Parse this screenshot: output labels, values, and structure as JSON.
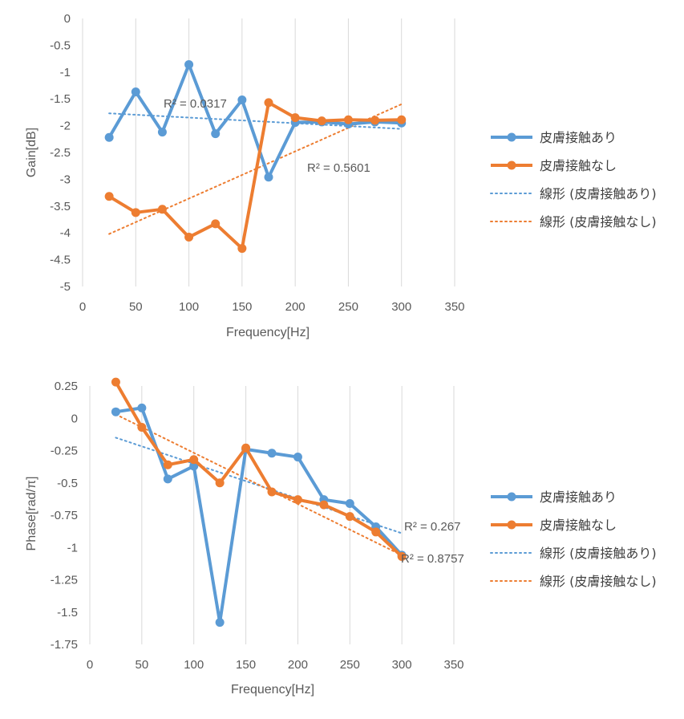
{
  "chart_data": [
    {
      "type": "line",
      "xlabel": "Frequency[Hz]",
      "ylabel": "Gain[dB]",
      "xlim": [
        0,
        350
      ],
      "ylim": [
        -5,
        0
      ],
      "x_ticks": [
        "0",
        "50",
        "100",
        "150",
        "200",
        "250",
        "300",
        "350"
      ],
      "y_ticks": [
        "0",
        "-0.5",
        "-1",
        "-1.5",
        "-2",
        "-2.5",
        "-3",
        "-3.5",
        "-4",
        "-4.5",
        "-5"
      ],
      "grid": "vertical",
      "legend_position": "right",
      "x": [
        25,
        50,
        75,
        100,
        125,
        150,
        175,
        200,
        225,
        250,
        275,
        300
      ],
      "series": [
        {
          "name": "皮膚接触あり",
          "color": "#5B9BD5",
          "values": [
            -2.22,
            -1.37,
            -2.12,
            -0.86,
            -2.15,
            -1.52,
            -2.96,
            -1.94,
            -1.93,
            -1.97,
            -1.93,
            -1.95
          ]
        },
        {
          "name": "皮膚接触なし",
          "color": "#ED7D31",
          "values": [
            -3.32,
            -3.62,
            -3.56,
            -4.08,
            -3.83,
            -4.29,
            -1.57,
            -1.85,
            -1.91,
            -1.89,
            -1.9,
            -1.89
          ]
        }
      ],
      "trendlines": [
        {
          "name": "線形 (皮膚接触あり)",
          "color": "#5B9BD5",
          "x": [
            25,
            300
          ],
          "values": [
            -1.77,
            -2.06
          ],
          "r2_label": "R² = 0.0317"
        },
        {
          "name": "線形 (皮膚接触なし)",
          "color": "#ED7D31",
          "x": [
            25,
            300
          ],
          "values": [
            -4.02,
            -1.6
          ],
          "r2_label": "R² = 0.5601"
        }
      ]
    },
    {
      "type": "line",
      "xlabel": "Frequency[Hz]",
      "ylabel": "Phase[rad/π]",
      "xlim": [
        0,
        350
      ],
      "ylim": [
        -1.75,
        0.25
      ],
      "x_ticks": [
        "0",
        "50",
        "100",
        "150",
        "200",
        "250",
        "300",
        "350"
      ],
      "y_ticks": [
        "0.25",
        "0",
        "-0.25",
        "-0.5",
        "-0.75",
        "-1",
        "-1.25",
        "-1.5",
        "-1.75"
      ],
      "grid": "vertical",
      "legend_position": "right",
      "x": [
        25,
        50,
        75,
        100,
        125,
        150,
        175,
        200,
        225,
        250,
        275,
        300
      ],
      "series": [
        {
          "name": "皮膚接触あり",
          "color": "#5B9BD5",
          "values": [
            0.05,
            0.08,
            -0.47,
            -0.37,
            -1.58,
            -0.24,
            -0.27,
            -0.3,
            -0.63,
            -0.66,
            -0.84,
            -1.06
          ]
        },
        {
          "name": "皮膚接触なし",
          "color": "#ED7D31",
          "values": [
            0.28,
            -0.07,
            -0.36,
            -0.32,
            -0.5,
            -0.23,
            -0.57,
            -0.63,
            -0.67,
            -0.76,
            -0.88,
            -1.07
          ]
        }
      ],
      "trendlines": [
        {
          "name": "線形 (皮膚接触あり)",
          "color": "#5B9BD5",
          "x": [
            25,
            300
          ],
          "values": [
            -0.15,
            -0.89
          ],
          "r2_label": "R² = 0.267"
        },
        {
          "name": "線形 (皮膚接触なし)",
          "color": "#ED7D31",
          "x": [
            25,
            300
          ],
          "values": [
            0.03,
            -1.06
          ],
          "r2_label": "R² = 0.8757"
        }
      ]
    }
  ]
}
